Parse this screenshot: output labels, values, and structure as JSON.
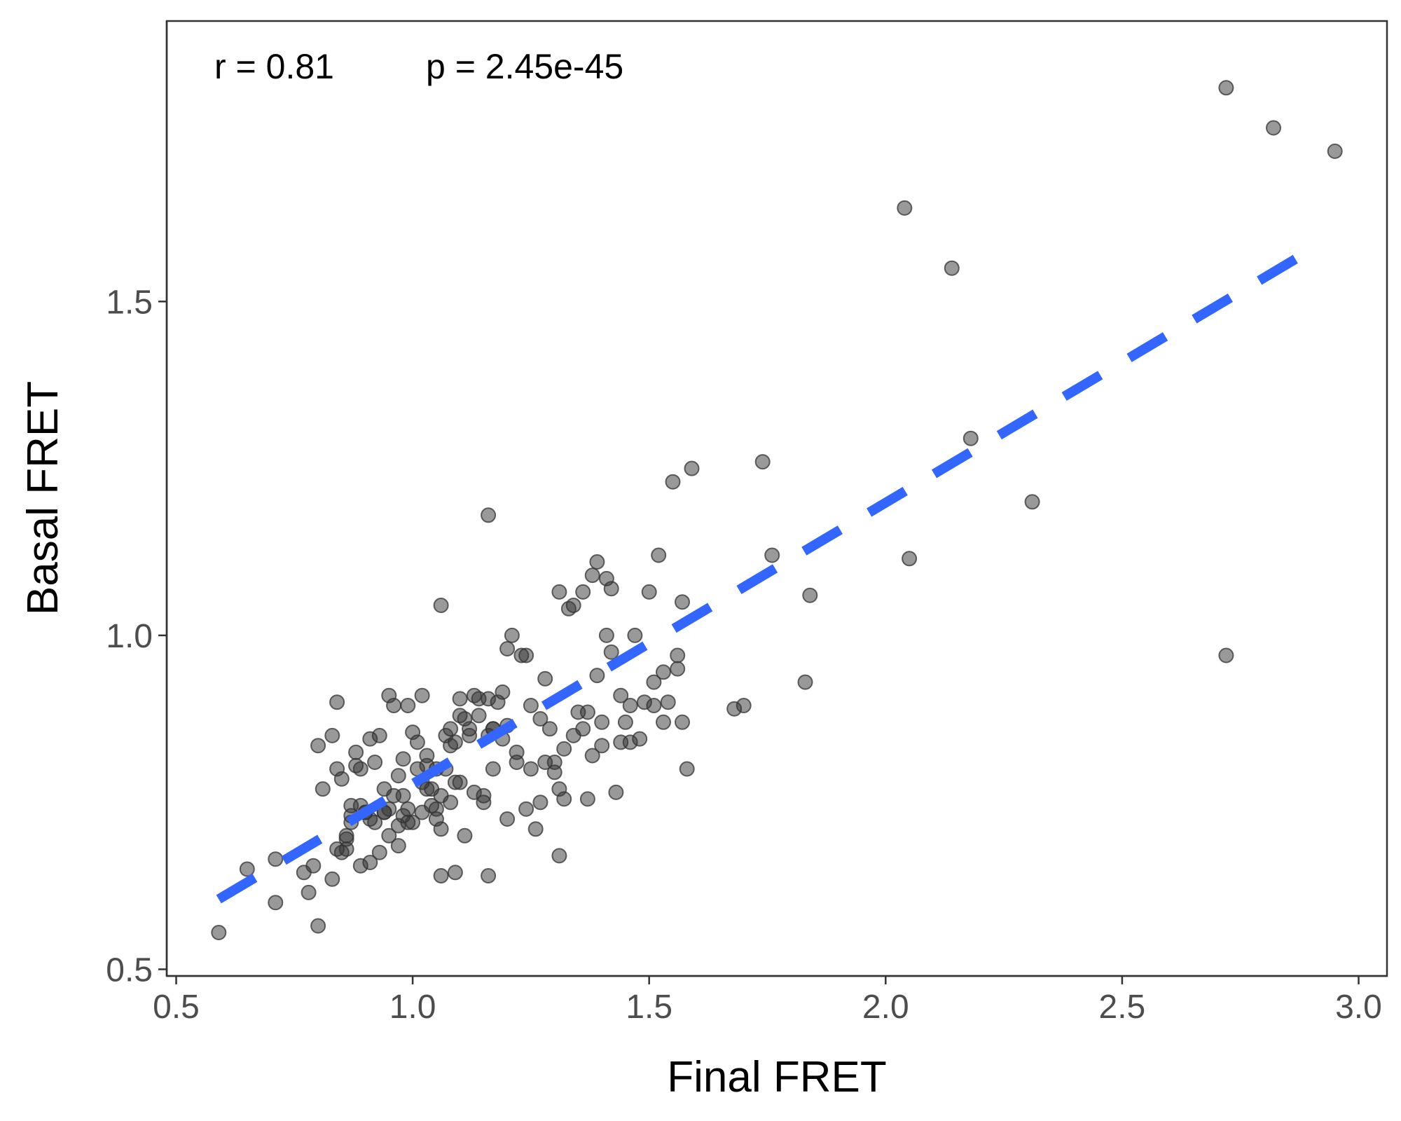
{
  "chart_data": {
    "type": "scatter",
    "xlabel": "Final FRET",
    "ylabel": "Basal FRET",
    "xlim": [
      0.48,
      3.06
    ],
    "ylim": [
      0.49,
      1.92
    ],
    "x_ticks": [
      {
        "value": 0.5,
        "label": "0.5"
      },
      {
        "value": 1.0,
        "label": "1.0"
      },
      {
        "value": 1.5,
        "label": "1.5"
      },
      {
        "value": 2.0,
        "label": "2.0"
      },
      {
        "value": 2.5,
        "label": "2.5"
      },
      {
        "value": 3.0,
        "label": "3.0"
      }
    ],
    "y_ticks": [
      {
        "value": 0.5,
        "label": "0.5"
      },
      {
        "value": 1.0,
        "label": "1.0"
      },
      {
        "value": 1.5,
        "label": "1.5"
      }
    ],
    "grid": false,
    "annotations": {
      "r_text": "r =  0.81",
      "p_text": "p =  2.45e-45"
    },
    "colors": {
      "points": "#333333",
      "fit_line": "#3366ff",
      "panel_border": "#333333"
    },
    "fit_line": {
      "style": "dashed",
      "x": [
        0.59,
        2.87
      ],
      "y": [
        0.605,
        1.565
      ]
    },
    "points": [
      [
        0.59,
        0.555
      ],
      [
        0.65,
        0.65
      ],
      [
        0.71,
        0.6
      ],
      [
        0.71,
        0.665
      ],
      [
        0.77,
        0.645
      ],
      [
        0.78,
        0.615
      ],
      [
        0.79,
        0.655
      ],
      [
        0.8,
        0.565
      ],
      [
        0.81,
        0.77
      ],
      [
        0.8,
        0.835
      ],
      [
        0.83,
        0.85
      ],
      [
        0.84,
        0.9
      ],
      [
        0.83,
        0.635
      ],
      [
        0.84,
        0.8
      ],
      [
        0.85,
        0.785
      ],
      [
        0.86,
        0.695
      ],
      [
        0.86,
        0.68
      ],
      [
        0.87,
        0.745
      ],
      [
        0.87,
        0.73
      ],
      [
        0.88,
        0.825
      ],
      [
        0.89,
        0.8
      ],
      [
        0.89,
        0.655
      ],
      [
        0.9,
        0.735
      ],
      [
        0.91,
        0.725
      ],
      [
        0.91,
        0.845
      ],
      [
        0.92,
        0.81
      ],
      [
        0.93,
        0.85
      ],
      [
        0.93,
        0.675
      ],
      [
        0.94,
        0.735
      ],
      [
        0.94,
        0.77
      ],
      [
        0.95,
        0.91
      ],
      [
        0.95,
        0.7
      ],
      [
        0.96,
        0.895
      ],
      [
        0.97,
        0.715
      ],
      [
        0.97,
        0.685
      ],
      [
        0.98,
        0.76
      ],
      [
        0.98,
        0.815
      ],
      [
        0.99,
        0.74
      ],
      [
        0.99,
        0.895
      ],
      [
        1.0,
        0.855
      ],
      [
        1.0,
        0.72
      ],
      [
        1.01,
        0.84
      ],
      [
        1.02,
        0.735
      ],
      [
        1.02,
        0.91
      ],
      [
        1.03,
        0.82
      ],
      [
        1.03,
        0.805
      ],
      [
        1.04,
        0.77
      ],
      [
        1.05,
        0.74
      ],
      [
        1.05,
        0.725
      ],
      [
        1.06,
        0.71
      ],
      [
        1.06,
        0.76
      ],
      [
        1.07,
        0.8
      ],
      [
        1.07,
        0.85
      ],
      [
        1.08,
        0.835
      ],
      [
        1.08,
        0.75
      ],
      [
        1.09,
        0.78
      ],
      [
        1.09,
        0.645
      ],
      [
        1.1,
        0.905
      ],
      [
        1.1,
        0.78
      ],
      [
        1.11,
        0.7
      ],
      [
        1.12,
        0.85
      ],
      [
        1.13,
        0.765
      ],
      [
        1.14,
        0.88
      ],
      [
        1.15,
        0.76
      ],
      [
        1.15,
        0.75
      ],
      [
        1.16,
        0.85
      ],
      [
        1.16,
        0.905
      ],
      [
        1.17,
        0.86
      ],
      [
        1.17,
        0.8
      ],
      [
        1.18,
        0.9
      ],
      [
        1.19,
        0.845
      ],
      [
        1.19,
        0.915
      ],
      [
        1.2,
        0.865
      ],
      [
        1.2,
        0.725
      ],
      [
        1.21,
        1.0
      ],
      [
        1.22,
        0.81
      ],
      [
        1.23,
        0.97
      ],
      [
        1.24,
        0.97
      ],
      [
        1.24,
        0.74
      ],
      [
        1.25,
        0.8
      ],
      [
        1.25,
        0.895
      ],
      [
        1.26,
        0.71
      ],
      [
        1.27,
        0.875
      ],
      [
        1.28,
        0.81
      ],
      [
        1.28,
        0.935
      ],
      [
        1.29,
        0.86
      ],
      [
        1.3,
        0.81
      ],
      [
        1.3,
        0.795
      ],
      [
        1.31,
        0.77
      ],
      [
        1.31,
        0.67
      ],
      [
        1.31,
        1.065
      ],
      [
        1.32,
        0.83
      ],
      [
        1.32,
        0.755
      ],
      [
        1.33,
        1.04
      ],
      [
        1.34,
        1.045
      ],
      [
        1.35,
        0.885
      ],
      [
        1.36,
        0.86
      ],
      [
        1.36,
        1.065
      ],
      [
        1.37,
        0.885
      ],
      [
        1.37,
        0.755
      ],
      [
        1.38,
        0.82
      ],
      [
        1.39,
        0.94
      ],
      [
        1.4,
        0.87
      ],
      [
        1.41,
        1.0
      ],
      [
        1.41,
        1.085
      ],
      [
        1.42,
        0.975
      ],
      [
        1.42,
        1.07
      ],
      [
        1.43,
        0.765
      ],
      [
        1.44,
        0.84
      ],
      [
        1.45,
        0.87
      ],
      [
        1.46,
        0.895
      ],
      [
        1.46,
        0.84
      ],
      [
        1.47,
        1.0
      ],
      [
        1.49,
        0.9
      ],
      [
        1.5,
        1.065
      ],
      [
        1.51,
        0.93
      ],
      [
        1.51,
        0.895
      ],
      [
        1.52,
        1.12
      ],
      [
        1.53,
        0.945
      ],
      [
        1.53,
        0.87
      ],
      [
        1.54,
        0.9
      ],
      [
        1.55,
        1.23
      ],
      [
        1.56,
        0.95
      ],
      [
        1.56,
        0.97
      ],
      [
        1.57,
        1.05
      ],
      [
        1.57,
        0.87
      ],
      [
        1.58,
        0.8
      ],
      [
        1.59,
        1.25
      ],
      [
        1.48,
        0.845
      ],
      [
        1.44,
        0.91
      ],
      [
        1.4,
        0.835
      ],
      [
        1.38,
        1.09
      ],
      [
        1.39,
        1.11
      ],
      [
        1.34,
        0.85
      ],
      [
        1.27,
        0.75
      ],
      [
        1.22,
        0.825
      ],
      [
        1.06,
        1.045
      ],
      [
        1.14,
        0.905
      ],
      [
        1.12,
        0.86
      ],
      [
        1.11,
        0.875
      ],
      [
        1.13,
        0.91
      ],
      [
        1.1,
        0.88
      ],
      [
        1.09,
        0.84
      ],
      [
        1.08,
        0.86
      ],
      [
        1.05,
        0.8
      ],
      [
        1.04,
        0.745
      ],
      [
        1.03,
        0.77
      ],
      [
        1.02,
        0.78
      ],
      [
        1.01,
        0.8
      ],
      [
        0.99,
        0.72
      ],
      [
        0.98,
        0.73
      ],
      [
        0.97,
        0.79
      ],
      [
        0.96,
        0.76
      ],
      [
        0.95,
        0.74
      ],
      [
        0.94,
        0.735
      ],
      [
        0.92,
        0.72
      ],
      [
        0.91,
        0.66
      ],
      [
        0.9,
        0.735
      ],
      [
        0.89,
        0.745
      ],
      [
        0.88,
        0.805
      ],
      [
        0.87,
        0.72
      ],
      [
        0.86,
        0.7
      ],
      [
        0.85,
        0.675
      ],
      [
        0.84,
        0.68
      ],
      [
        1.16,
        1.18
      ],
      [
        1.16,
        0.64
      ],
      [
        1.17,
        0.86
      ],
      [
        1.2,
        0.98
      ],
      [
        1.06,
        0.64
      ],
      [
        1.68,
        0.89
      ],
      [
        1.7,
        0.895
      ],
      [
        1.74,
        1.26
      ],
      [
        1.76,
        1.12
      ],
      [
        1.83,
        0.93
      ],
      [
        1.84,
        1.06
      ],
      [
        2.04,
        1.64
      ],
      [
        2.05,
        1.115
      ],
      [
        2.14,
        1.55
      ],
      [
        2.18,
        1.295
      ],
      [
        2.31,
        1.2
      ],
      [
        2.72,
        0.97
      ],
      [
        2.72,
        1.82
      ],
      [
        2.82,
        1.76
      ],
      [
        2.95,
        1.725
      ]
    ]
  }
}
